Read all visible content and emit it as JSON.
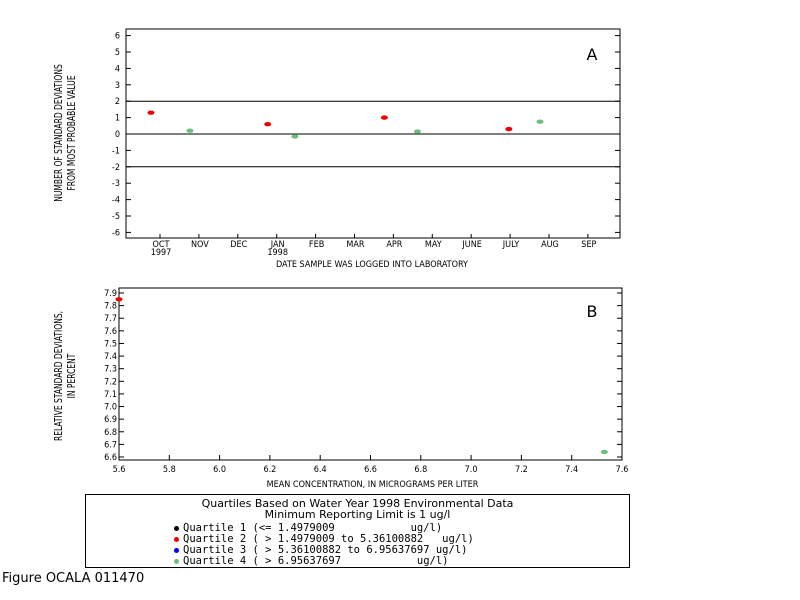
{
  "chart_data": [
    {
      "type": "scatter",
      "panel_label": "A",
      "xlabel": "DATE SAMPLE WAS LOGGED INTO LABORATORY",
      "ylabel_lines": [
        "NUMBER OF STANDARD DEVIATIONS",
        "FROM MOST PROBABLE VALUE"
      ],
      "ylim": [
        -6,
        6
      ],
      "yticks": [
        6,
        5,
        4,
        3,
        2,
        1,
        0,
        -1,
        -2,
        -3,
        -4,
        -5,
        -6
      ],
      "x_months": [
        "OCT",
        "NOV",
        "DEC",
        "JAN",
        "FEB",
        "MAR",
        "APR",
        "MAY",
        "JUNE",
        "JULY",
        "AUG",
        "SEP"
      ],
      "x_years": [
        {
          "month_index": 0,
          "label": "1997"
        },
        {
          "month_index": 3,
          "label": "1998"
        }
      ],
      "reference_lines": [
        2,
        0,
        -2
      ],
      "points": [
        {
          "month": 0.0,
          "y": 1.3,
          "quartile": 2
        },
        {
          "month": 1.0,
          "y": 0.2,
          "quartile": 4
        },
        {
          "month": 3.0,
          "y": 0.6,
          "quartile": 2
        },
        {
          "month": 3.7,
          "y": -0.15,
          "quartile": 4
        },
        {
          "month": 6.0,
          "y": 1.0,
          "quartile": 2
        },
        {
          "month": 6.85,
          "y": 0.15,
          "quartile": 4
        },
        {
          "month": 9.2,
          "y": 0.3,
          "quartile": 2
        },
        {
          "month": 10.0,
          "y": 0.75,
          "quartile": 4
        }
      ]
    },
    {
      "type": "scatter",
      "panel_label": "B",
      "xlabel": "MEAN CONCENTRATION, IN MICROGRAMS PER LITER",
      "ylabel_lines": [
        "RELATIVE STANDARD DEVIATIONS,",
        "IN PERCENT"
      ],
      "xlim": [
        5.6,
        7.6
      ],
      "ylim": [
        6.6,
        7.9
      ],
      "xticks": [
        "5.6",
        "5.8",
        "6.0",
        "6.2",
        "6.4",
        "6.6",
        "6.8",
        "7.0",
        "7.2",
        "7.4",
        "7.6"
      ],
      "yticks": [
        "7.9",
        "7.8",
        "7.7",
        "7.6",
        "7.5",
        "7.4",
        "7.3",
        "7.2",
        "7.1",
        "7.0",
        "6.9",
        "6.8",
        "6.7",
        "6.6"
      ],
      "points": [
        {
          "x": 5.6,
          "y": 7.85,
          "quartile": 2
        },
        {
          "x": 7.53,
          "y": 6.64,
          "quartile": 4
        }
      ]
    }
  ],
  "quartile_colors": {
    "1": "#000000",
    "2": "#ee0000",
    "3": "#0000ee",
    "4": "#6abf7a"
  },
  "legend": {
    "title_line1": "Quartiles Based on Water Year 1998 Environmental Data",
    "title_line2": "Minimum Reporting Limit is 1 ug/l",
    "items": [
      {
        "quartile": 1,
        "text": "Quartile 1 (<= 1.4979009            ug/l)"
      },
      {
        "quartile": 2,
        "text": "Quartile 2 ( > 1.4979009 to 5.36100882   ug/l)"
      },
      {
        "quartile": 3,
        "text": "Quartile 3 ( > 5.36100882 to 6.95637697 ug/l)"
      },
      {
        "quartile": 4,
        "text": "Quartile 4 ( > 6.95637697            ug/l)"
      }
    ]
  },
  "figure_caption": "Figure OCALA 011470"
}
